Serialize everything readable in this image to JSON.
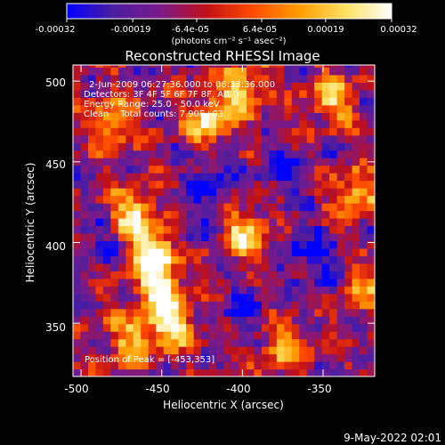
{
  "colorbar": {
    "tick_labels": [
      "-0.00032",
      "-0.00019",
      "-6.4e-05",
      "6.4e-05",
      "0.00019",
      "0.00032"
    ],
    "tick_values": [
      -0.00032,
      -0.00019,
      -6.4e-05,
      6.4e-05,
      0.00019,
      0.00032
    ],
    "range": [
      -0.00032,
      0.00032
    ],
    "unit_label": "(photons cm⁻² s⁻¹ asec⁻²)"
  },
  "chart_data": {
    "type": "heatmap",
    "title": "Reconstructed RHESSI Image",
    "xlabel": "Heliocentric X (arcsec)",
    "ylabel": "Heliocentric Y (arcsec)",
    "xlim": [
      -505,
      -318
    ],
    "ylim": [
      317,
      510
    ],
    "x_ticks": [
      -500,
      -450,
      -400,
      -350
    ],
    "x_tick_labels": [
      "-500",
      "-450",
      "-400",
      "-350"
    ],
    "y_ticks": [
      350,
      400,
      450,
      500
    ],
    "y_tick_labels": [
      "350",
      "400",
      "450",
      "500"
    ],
    "colormap": [
      "#0000ff",
      "#4b1ea0",
      "#7a1a8c",
      "#c01018",
      "#ff4a00",
      "#ff9c00",
      "#ffe060",
      "#ffffff"
    ],
    "annotations": [
      "2-Jun-2009 06:27:36.000 to 06:33:36.000",
      "Detectors: 3F 4F 5F 6F 7F 8F, Att 0",
      "Energy Range: 25.0 - 50.0 keV",
      "Clean    Total counts: 7.90E+03"
    ],
    "peak_label": "Position of Peak = [-453,353]",
    "peak_position": [
      -453,
      353
    ],
    "bright_regions": [
      {
        "x": -455,
        "y": 395,
        "intensity": 1.0
      },
      {
        "x": -452,
        "y": 372,
        "intensity": 0.9
      },
      {
        "x": -445,
        "y": 350,
        "intensity": 0.85
      },
      {
        "x": -468,
        "y": 418,
        "intensity": 0.75
      },
      {
        "x": -420,
        "y": 475,
        "intensity": 0.8
      },
      {
        "x": -400,
        "y": 495,
        "intensity": 0.75
      },
      {
        "x": -480,
        "y": 475,
        "intensity": 0.7
      },
      {
        "x": -345,
        "y": 490,
        "intensity": 0.7
      },
      {
        "x": -330,
        "y": 430,
        "intensity": 0.65
      },
      {
        "x": -398,
        "y": 405,
        "intensity": 0.7
      },
      {
        "x": -470,
        "y": 340,
        "intensity": 0.55
      },
      {
        "x": -375,
        "y": 335,
        "intensity": 0.55
      },
      {
        "x": -330,
        "y": 370,
        "intensity": 0.6
      }
    ],
    "dark_regions": [
      {
        "x": -360,
        "y": 395,
        "depth": 0.95
      },
      {
        "x": -345,
        "y": 375,
        "depth": 0.85
      },
      {
        "x": -375,
        "y": 445,
        "depth": 0.9
      },
      {
        "x": -420,
        "y": 440,
        "depth": 0.8
      },
      {
        "x": -490,
        "y": 400,
        "depth": 0.75
      },
      {
        "x": -400,
        "y": 360,
        "depth": 0.7
      },
      {
        "x": -430,
        "y": 410,
        "depth": 0.6
      }
    ]
  },
  "footer": {
    "timestamp": "9-May-2022 02:01"
  }
}
